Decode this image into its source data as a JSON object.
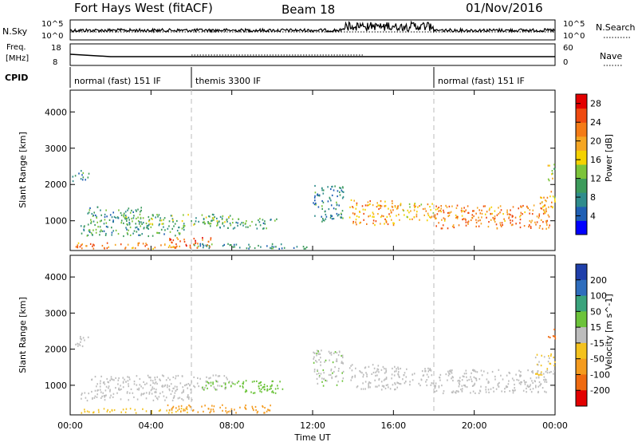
{
  "header": {
    "radar": "Fort Hays West (fitACF)",
    "beam": "Beam 18",
    "date": "01/Nov/2016"
  },
  "noise_panel": {
    "left_label": "N.Sky",
    "right_label": "N.Search",
    "left_ticks": [
      "10^5",
      "10^0"
    ],
    "right_ticks": [
      "10^5",
      "10^0"
    ]
  },
  "freq_panel": {
    "left_label_1": "Freq.",
    "left_label_2": "[MHz]",
    "right_label": "Nave",
    "left_ticks": [
      "18",
      "8"
    ],
    "right_ticks": [
      "60",
      "0"
    ]
  },
  "cpid": {
    "label": "CPID",
    "segments": [
      {
        "start": 0,
        "end": 6,
        "text": "normal (fast) 151 IF"
      },
      {
        "start": 6,
        "end": 18,
        "text": "themis 3300 IF"
      },
      {
        "start": 18,
        "end": 24,
        "text": "normal (fast) 151 IF"
      }
    ]
  },
  "axes": {
    "x_ticks": [
      "00:00",
      "04:00",
      "08:00",
      "12:00",
      "16:00",
      "20:00",
      "00:00"
    ],
    "x_label": "Time UT",
    "y_label": "Slant Range [km]",
    "y_ticks": [
      "1000",
      "2000",
      "3000",
      "4000"
    ]
  },
  "colorbars": {
    "power": {
      "label": "Power [dB]",
      "ticks": [
        "4",
        "8",
        "12",
        "16",
        "20",
        "24",
        "28"
      ],
      "colors": [
        "#0000ff",
        "#1f5fb4",
        "#2f8c8c",
        "#3c9b5b",
        "#7cc43a",
        "#f5d200",
        "#f5a623",
        "#f47b16",
        "#ef4a10",
        "#e30000"
      ]
    },
    "velocity": {
      "label": "Velocity [m s^-1]",
      "ticks": [
        "200",
        "100",
        "50",
        "15",
        "-15",
        "-50",
        "-100",
        "-200"
      ],
      "colors": [
        "#1f3faa",
        "#2e6dbd",
        "#3aa37c",
        "#6cc33a",
        "#bdbdbd",
        "#f4c21e",
        "#f49b1e",
        "#ef6a10",
        "#e30000"
      ]
    }
  },
  "chart_data": [
    {
      "type": "heatmap",
      "name_ref": "power",
      "xlim": [
        0,
        24
      ],
      "ylim": [
        180,
        4600
      ],
      "blobs": [
        {
          "t0": 0.2,
          "t1": 5.5,
          "r0": 250,
          "r1": 420,
          "v": 22
        },
        {
          "t0": 4.8,
          "t1": 7.0,
          "r0": 260,
          "r1": 560,
          "v": 24
        },
        {
          "t0": 0.5,
          "t1": 5.8,
          "r0": 600,
          "r1": 900,
          "v": 10
        },
        {
          "t0": 0.8,
          "t1": 3.5,
          "r0": 900,
          "r1": 1400,
          "v": 9
        },
        {
          "t0": 2.5,
          "t1": 8.0,
          "r0": 900,
          "r1": 1200,
          "v": 12
        },
        {
          "t0": 6.5,
          "t1": 10.2,
          "r0": 800,
          "r1": 1100,
          "v": 10
        },
        {
          "t0": 6.0,
          "t1": 10.5,
          "r0": 250,
          "r1": 400,
          "v": 9
        },
        {
          "t0": 9.8,
          "t1": 12.0,
          "r0": 250,
          "r1": 330,
          "v": 7
        },
        {
          "t0": 0.1,
          "t1": 0.9,
          "r0": 2100,
          "r1": 2400,
          "v": 8
        },
        {
          "t0": 13.8,
          "t1": 16.0,
          "r0": 900,
          "r1": 1600,
          "v": 20
        },
        {
          "t0": 16.0,
          "t1": 18.0,
          "r0": 1000,
          "r1": 1500,
          "v": 18
        },
        {
          "t0": 18.0,
          "t1": 23.7,
          "r0": 800,
          "r1": 1450,
          "v": 22
        },
        {
          "t0": 23.2,
          "t1": 24.0,
          "r0": 1300,
          "r1": 1900,
          "v": 19
        },
        {
          "t0": 23.6,
          "t1": 24.0,
          "r0": 2100,
          "r1": 2600,
          "v": 14
        },
        {
          "t0": 12.0,
          "t1": 13.5,
          "r0": 1000,
          "r1": 2000,
          "v": 8
        }
      ]
    },
    {
      "type": "heatmap",
      "name_ref": "velocity",
      "xlim": [
        0,
        24
      ],
      "ylim": [
        180,
        4600
      ],
      "blobs": [
        {
          "t0": 0.2,
          "t1": 6.0,
          "r0": 250,
          "r1": 380,
          "v": -40
        },
        {
          "t0": 4.8,
          "t1": 10.0,
          "r0": 250,
          "r1": 480,
          "v": -60
        },
        {
          "t0": 0.5,
          "t1": 6.0,
          "r0": 600,
          "r1": 900,
          "v": 0
        },
        {
          "t0": 1.0,
          "t1": 8.0,
          "r0": 900,
          "r1": 1300,
          "v": 0
        },
        {
          "t0": 6.5,
          "t1": 10.5,
          "r0": 900,
          "r1": 1150,
          "v": 30
        },
        {
          "t0": 8.5,
          "t1": 10.2,
          "r0": 800,
          "r1": 1000,
          "v": 40
        },
        {
          "t0": 0.1,
          "t1": 0.9,
          "r0": 2100,
          "r1": 2400,
          "v": 0
        },
        {
          "t0": 13.8,
          "t1": 16.2,
          "r0": 900,
          "r1": 1600,
          "v": 0
        },
        {
          "t0": 16.2,
          "t1": 18.0,
          "r0": 1000,
          "r1": 1500,
          "v": 0
        },
        {
          "t0": 18.0,
          "t1": 23.6,
          "r0": 800,
          "r1": 1450,
          "v": 0
        },
        {
          "t0": 23.0,
          "t1": 24.0,
          "r0": 1300,
          "r1": 1900,
          "v": -20
        },
        {
          "t0": 23.6,
          "t1": 24.0,
          "r0": 2300,
          "r1": 2600,
          "v": -180
        },
        {
          "t0": 12.0,
          "t1": 13.5,
          "r0": 1000,
          "r1": 2000,
          "v": 10
        }
      ]
    }
  ]
}
